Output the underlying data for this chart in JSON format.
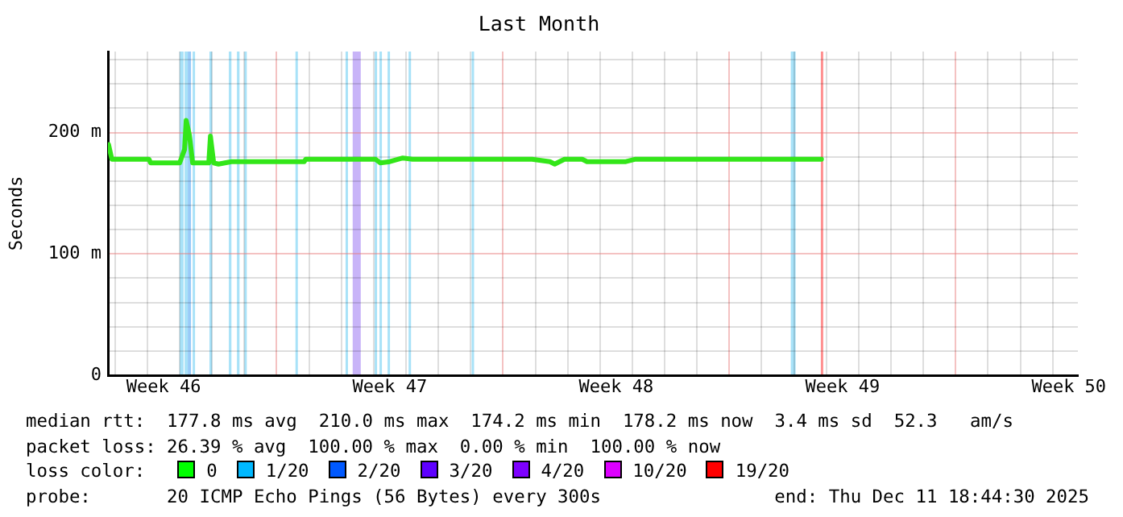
{
  "chart_data": {
    "type": "line",
    "title": "Last Month",
    "ylabel": "Seconds",
    "xlim": [
      "2025-11-11T18:44",
      "2025-12-11T18:44"
    ],
    "xticks": [
      {
        "value": "2025-11-12T00:00",
        "label": null
      },
      {
        "value": "2025-11-13T00:00",
        "label": null
      },
      {
        "value": "2025-11-13T12:00",
        "label": "Week 46"
      },
      {
        "value": "2025-11-14T00:00",
        "label": null
      },
      {
        "value": "2025-11-15T00:00",
        "label": null
      },
      {
        "value": "2025-11-16T00:00",
        "label": null
      },
      {
        "value": "2025-11-17T00:00",
        "label": null
      },
      {
        "value": "2025-11-18T00:00",
        "label": null
      },
      {
        "value": "2025-11-19T00:00",
        "label": null
      },
      {
        "value": "2025-11-20T00:00",
        "label": null
      },
      {
        "value": "2025-11-20T12:00",
        "label": "Week 47"
      },
      {
        "value": "2025-11-21T00:00",
        "label": null
      },
      {
        "value": "2025-11-22T00:00",
        "label": null
      },
      {
        "value": "2025-11-23T00:00",
        "label": null
      },
      {
        "value": "2025-11-24T00:00",
        "label": null
      },
      {
        "value": "2025-11-25T00:00",
        "label": null
      },
      {
        "value": "2025-11-26T00:00",
        "label": null
      },
      {
        "value": "2025-11-27T00:00",
        "label": null
      },
      {
        "value": "2025-11-27T12:00",
        "label": "Week 48"
      },
      {
        "value": "2025-11-28T00:00",
        "label": null
      },
      {
        "value": "2025-11-29T00:00",
        "label": null
      },
      {
        "value": "2025-11-30T00:00",
        "label": null
      },
      {
        "value": "2025-12-01T00:00",
        "label": null
      },
      {
        "value": "2025-12-02T00:00",
        "label": null
      },
      {
        "value": "2025-12-03T00:00",
        "label": null
      },
      {
        "value": "2025-12-04T00:00",
        "label": null
      },
      {
        "value": "2025-12-04T12:00",
        "label": "Week 49"
      },
      {
        "value": "2025-12-05T00:00",
        "label": null
      },
      {
        "value": "2025-12-06T00:00",
        "label": null
      },
      {
        "value": "2025-12-07T00:00",
        "label": null
      },
      {
        "value": "2025-12-08T00:00",
        "label": null
      },
      {
        "value": "2025-12-09T00:00",
        "label": null
      },
      {
        "value": "2025-12-10T00:00",
        "label": null
      },
      {
        "value": "2025-12-11T00:00",
        "label": null
      },
      {
        "value": "2025-12-11T12:00",
        "label": "Week 50"
      }
    ],
    "ylim": [
      0,
      266.7
    ],
    "yticks": [
      0,
      {
        "value": 20,
        "label": null
      },
      {
        "value": 40,
        "label": null
      },
      {
        "value": 60,
        "label": null
      },
      {
        "value": 80,
        "label": null
      },
      {
        "value": 100,
        "label": "100 m"
      },
      {
        "value": 120,
        "label": null
      },
      {
        "value": 140,
        "label": null
      },
      {
        "value": 160,
        "label": null
      },
      {
        "value": 180,
        "label": null
      },
      {
        "value": 200,
        "label": "200 m"
      },
      {
        "value": 220,
        "label": null
      },
      {
        "value": 240,
        "label": null
      },
      {
        "value": 260,
        "label": null
      }
    ],
    "grid": true,
    "legend": false,
    "marker": "none",
    "line_style": "solid",
    "series": [
      {
        "color": "#33e619",
        "x": [
          "2025-11-11T19:12",
          "2025-11-11T21:36",
          "2025-11-13T01:12",
          "2025-11-13T02:24",
          "2025-11-14T00:00",
          "2025-11-14T03:36",
          "2025-11-14T04:48",
          "2025-11-14T07:12",
          "2025-11-14T09:36",
          "2025-11-14T21:36",
          "2025-11-14T22:48",
          "2025-11-15T01:12",
          "2025-11-15T04:48",
          "2025-11-15T14:24",
          "2025-11-17T20:24",
          "2025-11-17T21:36",
          "2025-11-20T01:12",
          "2025-11-20T04:48",
          "2025-11-20T12:00",
          "2025-11-20T21:36",
          "2025-11-21T04:48",
          "2025-11-24T21:36",
          "2025-11-25T10:48",
          "2025-11-25T14:24",
          "2025-11-25T21:36",
          "2025-11-26T10:48",
          "2025-11-26T14:24",
          "2025-11-27T19:12",
          "2025-11-28T02:24",
          "2025-12-03T20:24"
        ],
        "values": [
          190,
          178,
          178,
          175,
          175,
          186,
          210,
          198,
          175,
          175,
          197,
          175,
          174,
          176,
          176,
          178,
          178,
          175,
          176,
          179,
          178,
          178,
          176,
          174,
          178,
          178,
          176,
          176,
          178,
          178
        ]
      }
    ],
    "bands": [
      {
        "axis": "x",
        "from": "2025-11-14T00:00",
        "to": "2025-11-14T02:53",
        "color": "#a8e2f8"
      },
      {
        "axis": "x",
        "from": "2025-11-14T03:36",
        "to": "2025-11-14T06:00",
        "color": "#a8e2f8"
      },
      {
        "axis": "x",
        "from": "2025-11-14T06:00",
        "to": "2025-11-14T08:24",
        "color": "#98caf8"
      },
      {
        "axis": "x",
        "from": "2025-11-14T09:36",
        "to": "2025-11-14T10:48",
        "color": "#a8e2f8"
      },
      {
        "axis": "x",
        "from": "2025-11-14T22:05",
        "to": "2025-11-15T00:00",
        "color": "#a8e2f8"
      },
      {
        "axis": "x",
        "from": "2025-11-15T12:29",
        "to": "2025-11-15T14:24",
        "color": "#a8e2f8"
      },
      {
        "axis": "x",
        "from": "2025-11-15T18:29",
        "to": "2025-11-15T20:24",
        "color": "#a8e2f8"
      },
      {
        "axis": "x",
        "from": "2025-11-16T00:00",
        "to": "2025-11-16T01:41",
        "color": "#a8e2f8"
      },
      {
        "axis": "x",
        "from": "2025-11-17T13:55",
        "to": "2025-11-17T15:36",
        "color": "#a8e2f8"
      },
      {
        "axis": "x",
        "from": "2025-11-19T03:07",
        "to": "2025-11-19T04:48",
        "color": "#a8e2f8"
      },
      {
        "axis": "x",
        "from": "2025-11-19T08:24",
        "to": "2025-11-19T14:24",
        "color": "#c8b4f8"
      },
      {
        "axis": "x",
        "from": "2025-11-20T00:43",
        "to": "2025-11-20T02:24",
        "color": "#a8e2f8"
      },
      {
        "axis": "x",
        "from": "2025-11-20T04:19",
        "to": "2025-11-20T06:00",
        "color": "#a8e2f8"
      },
      {
        "axis": "x",
        "from": "2025-11-20T10:19",
        "to": "2025-11-20T12:00",
        "color": "#a8e2f8"
      },
      {
        "axis": "x",
        "from": "2025-11-21T01:55",
        "to": "2025-11-21T03:07",
        "color": "#a8e2f8"
      },
      {
        "axis": "x",
        "from": "2025-11-23T00:43",
        "to": "2025-11-23T02:24",
        "color": "#a8e2f8"
      },
      {
        "axis": "x",
        "from": "2025-12-02T21:36",
        "to": "2025-12-03T01:12",
        "color": "#a8e2f8"
      },
      {
        "axis": "x",
        "from": "2025-12-03T19:55",
        "to": "2025-12-03T21:07",
        "color": "#ff9090"
      }
    ],
    "annotations": [
      "median rtt:  177.8 ms avg  210.0 ms max  174.2 ms min  178.2 ms now  3.4 ms sd  52.3   am/s",
      "packet loss: 26.39 % avg  100.00 % max  0.00 % min  100.00 % now",
      "loss color:",
      "0",
      "1/20",
      "2/20",
      "3/20",
      "4/20",
      "10/20",
      "19/20",
      "probe:       20 ICMP Echo Pings (56 Bytes) every 300s",
      "end: Thu Dec 11 18:44:30 2025"
    ]
  }
}
